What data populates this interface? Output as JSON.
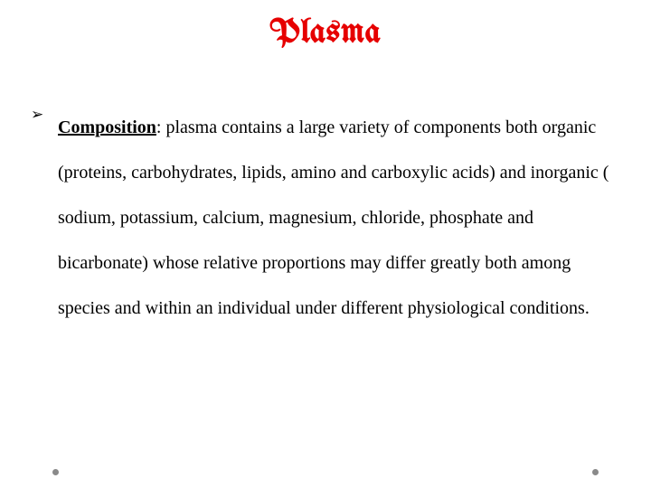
{
  "title": {
    "text": "Plasma",
    "color": "#e60000",
    "font_size_pt": 28
  },
  "bullet_glyph": "➢",
  "composition": {
    "label": "Composition",
    "text": ": plasma contains a large variety of components both organic (proteins, carbohydrates, lipids, amino and carboxylic acids) and inorganic ( sodium, potassium, calcium, magnesium, chloride, phosphate and bicarbonate) whose relative proportions may differ greatly both among species and within an individual under different physiological conditions."
  },
  "nav_dots": {
    "left_color": "#8a8a8a",
    "right_color": "#8a8a8a"
  },
  "colors": {
    "background": "#ffffff",
    "body_text": "#000000"
  }
}
